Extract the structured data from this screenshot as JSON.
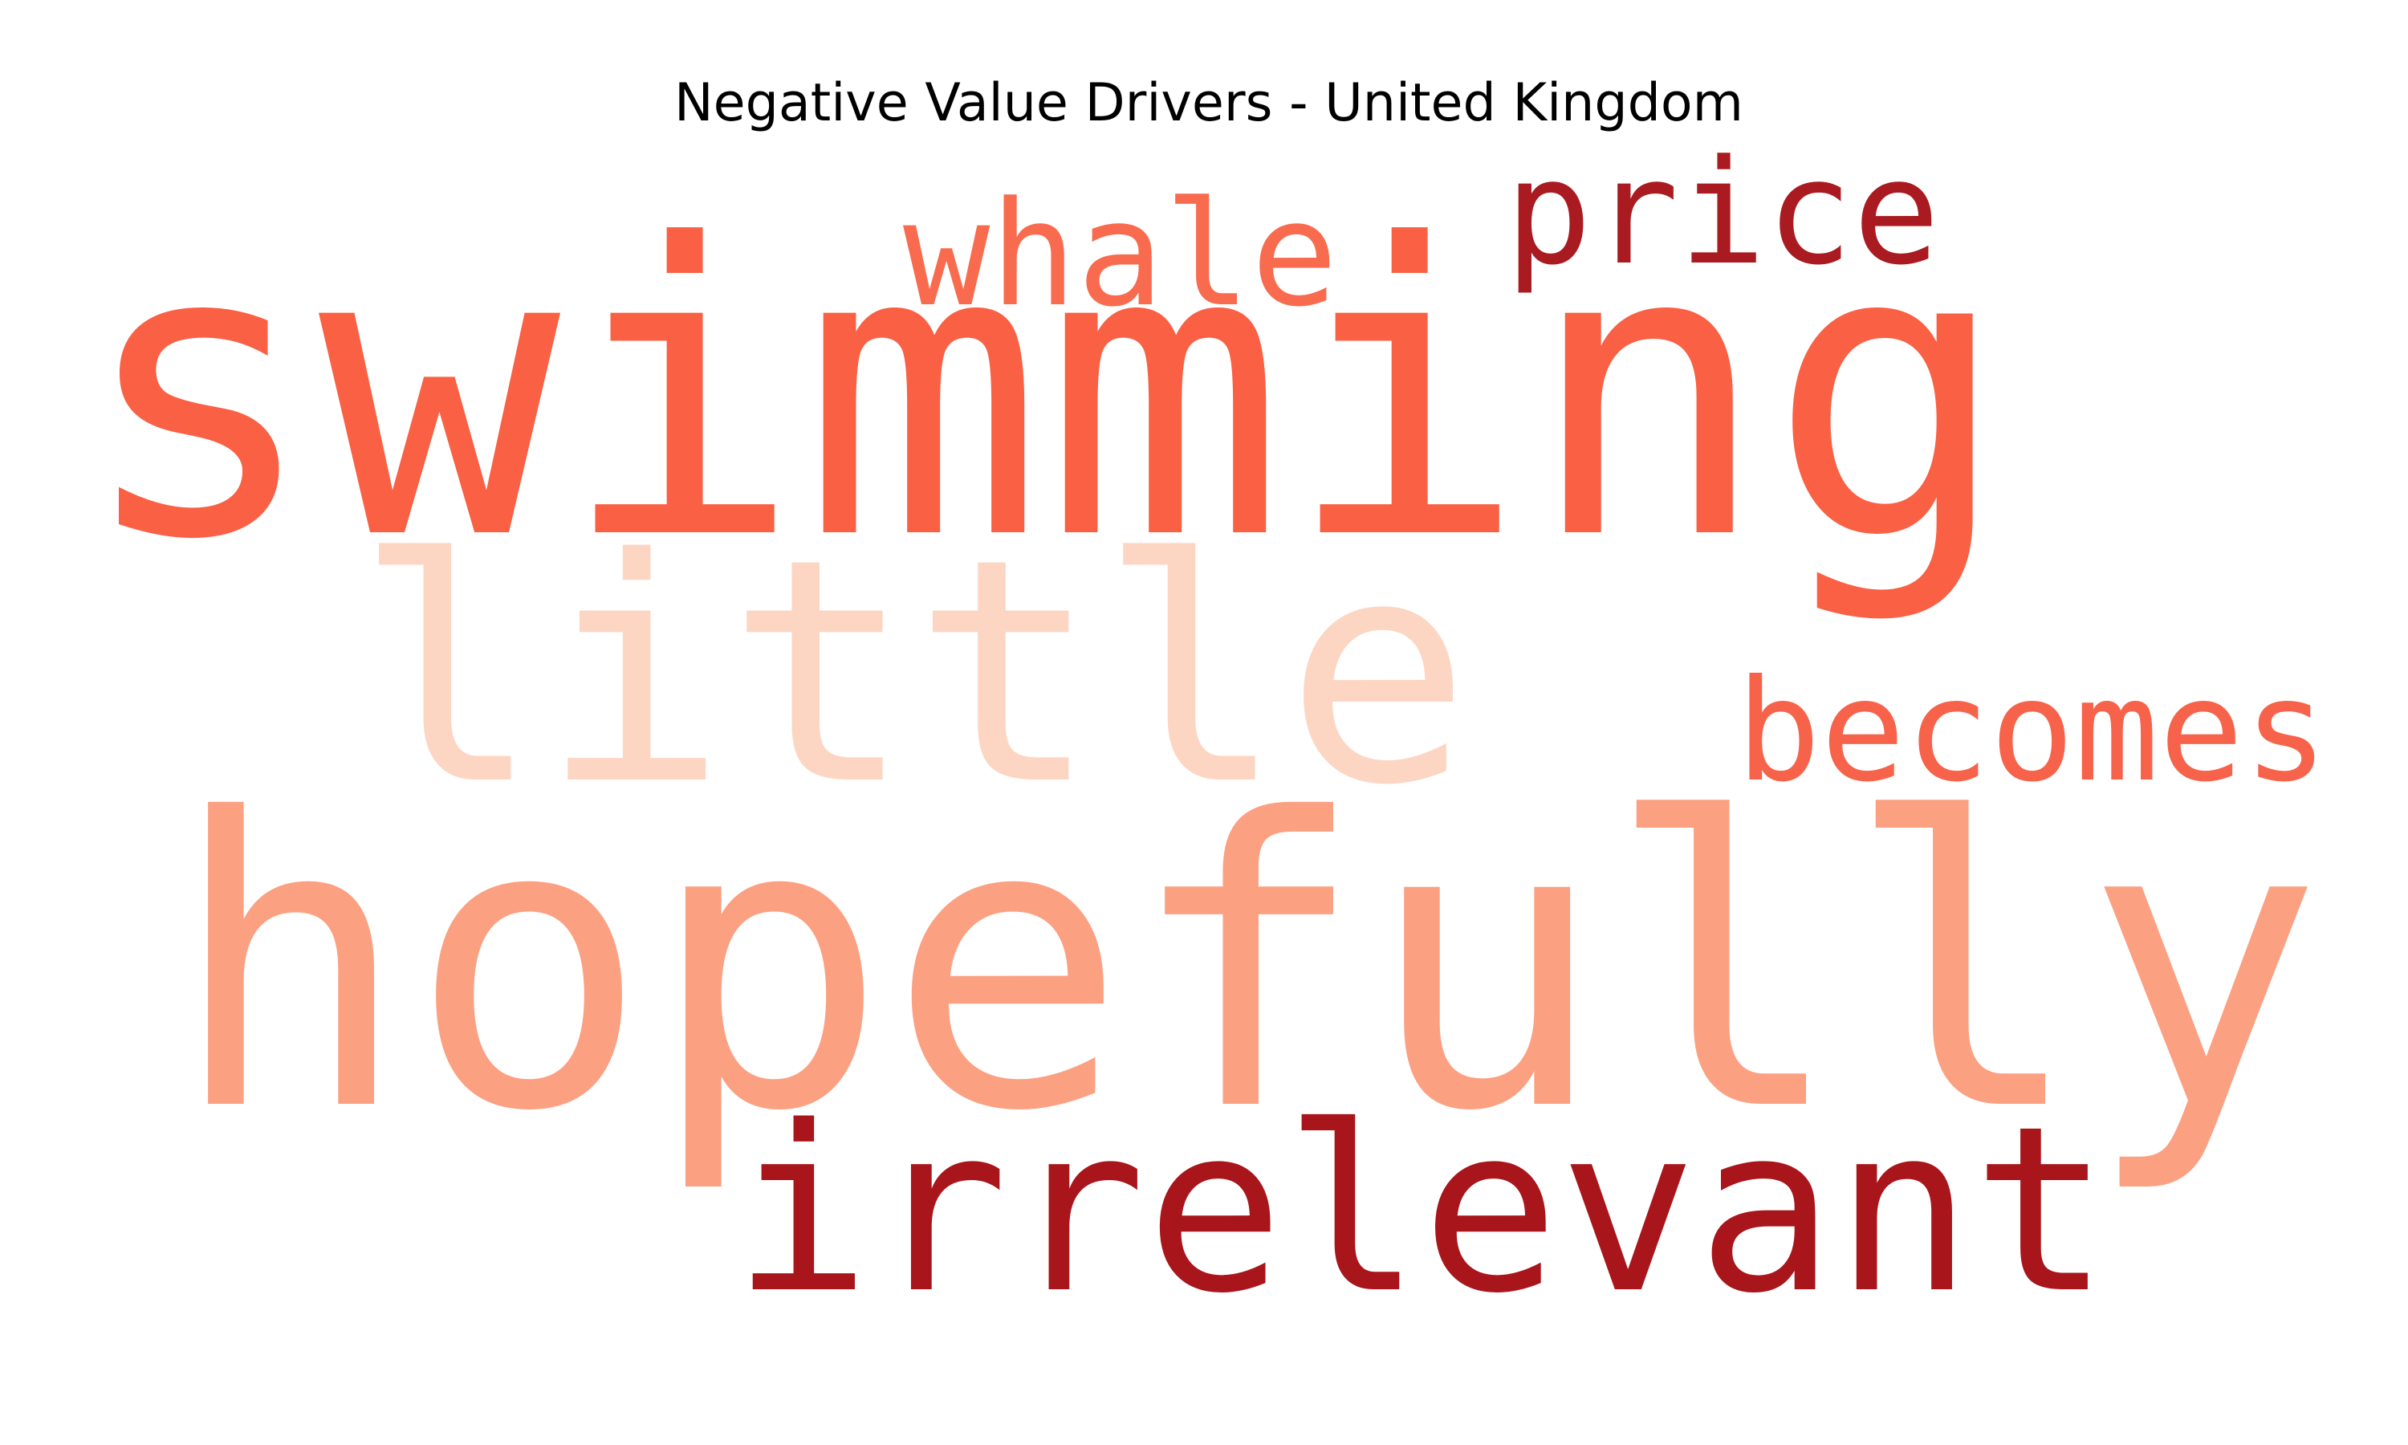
{
  "chart_data": {
    "type": "wordcloud",
    "title": "Negative Value Drivers - United Kingdom",
    "words": [
      "swimming",
      "hopefully",
      "little",
      "irrelevant",
      "whale",
      "becomes",
      "price"
    ],
    "values": [
      1.0,
      0.99,
      0.77,
      0.57,
      0.36,
      0.35,
      0.36
    ],
    "colors": [
      "#f96044",
      "#fca082",
      "#fdd6c3",
      "#a8151b",
      "#f86b4f",
      "#f7634a",
      "#a91b20"
    ]
  }
}
